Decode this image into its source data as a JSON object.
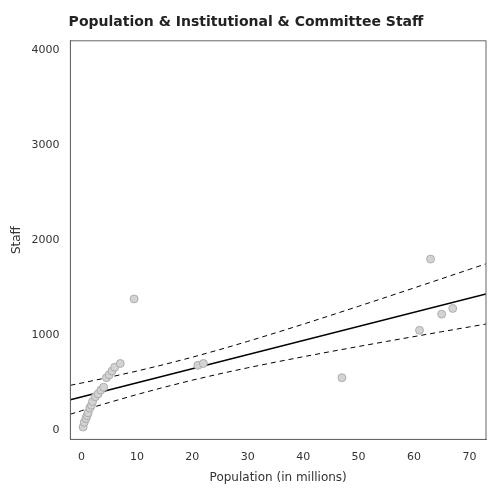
{
  "chart_data": {
    "type": "scatter",
    "title": "Population & Institutional & Committee Staff",
    "xlabel": "Population (in millions)",
    "ylabel": "Staff",
    "xlim": [
      -2,
      73
    ],
    "ylim": [
      -100,
      4100
    ],
    "xticks": [
      0,
      10,
      20,
      30,
      40,
      50,
      60,
      70
    ],
    "yticks": [
      0,
      1000,
      2000,
      3000,
      4000
    ],
    "grid": false,
    "series": [
      {
        "type": "line",
        "line_style": "dashed",
        "color": "#000000",
        "x": [
          -2,
          0,
          5,
          10,
          15,
          20,
          25,
          30,
          35,
          40,
          45,
          50,
          55,
          60,
          65,
          70,
          73
        ],
        "values": [
          470.0,
          493.53,
          554.65,
          619.85,
          690.06,
          765.81,
          846.91,
          932.59,
          1021.82,
          1113.68,
          1207.46,
          1302.62,
          1398.8,
          1495.72,
          1593.23,
          1691.18,
          1750.11
        ]
      },
      {
        "type": "line",
        "line_style": "dashed",
        "color": "#000000",
        "x": [
          -2,
          0,
          5,
          10,
          15,
          20,
          25,
          30,
          35,
          40,
          45,
          50,
          55,
          60,
          65,
          70,
          73
        ],
        "values": [
          165.78,
          201.71,
          289.25,
          372.71,
          451.14,
          524.05,
          591.61,
          654.59,
          714.02,
          770.8,
          825.68,
          879.18,
          931.66,
          983.38,
          1034.53,
          1085.24,
          1115.49
        ]
      },
      {
        "type": "line",
        "line_style": "solid",
        "color": "#000000",
        "x": [
          -2,
          73
        ],
        "values": [
          317.89,
          1432.8
        ]
      },
      {
        "type": "scatter",
        "marker": "circle",
        "color": "#d3d3d3",
        "x": [
          0.3,
          0.5,
          0.8,
          1.0,
          1.2,
          1.5,
          1.8,
          2.0,
          2.5,
          3.0,
          3.5,
          4.0,
          4.5,
          5.0,
          5.5,
          6.0,
          7.0,
          9.5,
          21.0,
          22.0,
          47.0,
          61.0,
          63.0,
          65.0,
          67.0
        ],
        "values": [
          30,
          80,
          120,
          150,
          180,
          230,
          260,
          300,
          350,
          380,
          420,
          450,
          550,
          580,
          620,
          660,
          700,
          1380,
          680,
          700,
          550,
          1050,
          1800,
          1220,
          1280
        ]
      }
    ]
  }
}
